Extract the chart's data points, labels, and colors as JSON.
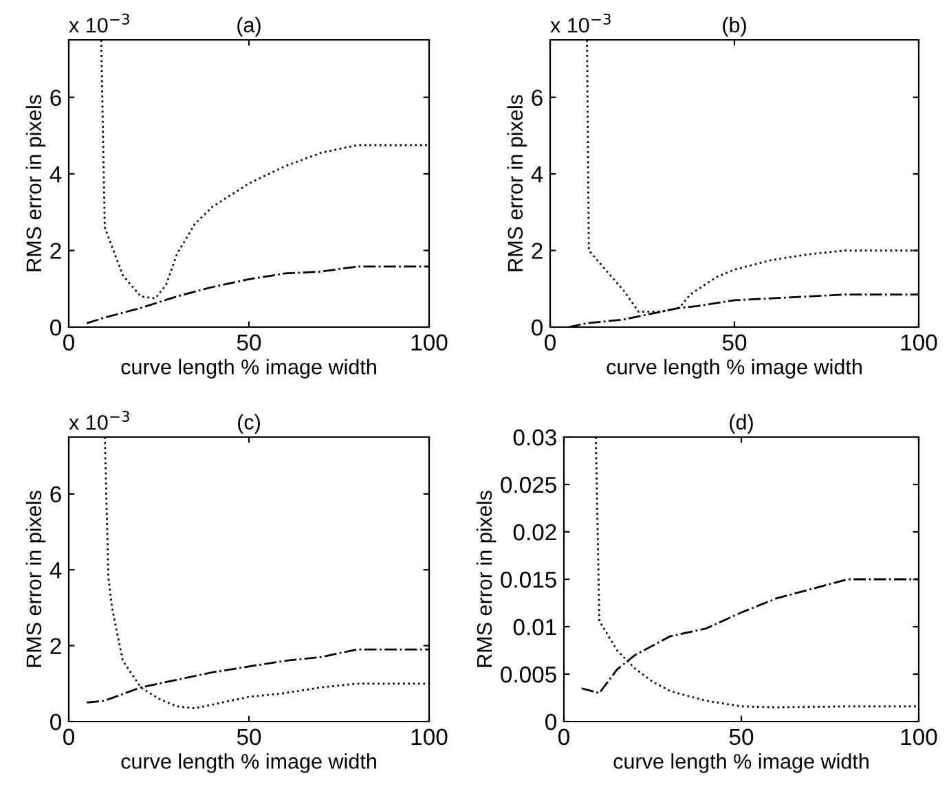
{
  "chart_data": [
    {
      "type": "line",
      "title": "(a)",
      "xlabel": "curve length % image width",
      "ylabel": "RMS error in pixels",
      "annotations": [
        "x 10$^{−3}$"
      ],
      "xlim": [
        0,
        100
      ],
      "xticks": [
        0,
        50,
        100
      ],
      "ylim": [
        0,
        7.5
      ],
      "yticks": [
        0,
        2,
        4,
        6
      ],
      "grid": false,
      "series": [
        {
          "color": "#000000",
          "line_style": "dotted",
          "x": [
            9,
            10,
            15,
            20,
            24,
            27,
            30,
            35,
            40,
            50,
            60,
            70,
            80,
            100
          ],
          "values": [
            7.5,
            2.6,
            1.35,
            0.8,
            0.75,
            1.1,
            1.9,
            2.7,
            3.15,
            3.75,
            4.2,
            4.55,
            4.75,
            4.75
          ]
        },
        {
          "color": "#000000",
          "line_style": "dashdot",
          "x": [
            5,
            10,
            20,
            30,
            40,
            50,
            60,
            70,
            80,
            100
          ],
          "values": [
            0.1,
            0.25,
            0.5,
            0.8,
            1.05,
            1.25,
            1.4,
            1.45,
            1.58,
            1.58
          ]
        }
      ]
    },
    {
      "type": "line",
      "title": "(b)",
      "xlabel": "curve length % image width",
      "ylabel": "RMS error in pixels",
      "annotations": [
        "x 10$^{−3}$"
      ],
      "xlim": [
        0,
        100
      ],
      "xticks": [
        0,
        50,
        100
      ],
      "ylim": [
        0,
        7.5
      ],
      "yticks": [
        0,
        2,
        4,
        6
      ],
      "grid": false,
      "series": [
        {
          "color": "#000000",
          "line_style": "dotted",
          "x": [
            10,
            10.5,
            15,
            20,
            24,
            30,
            35,
            38,
            45,
            50,
            60,
            70,
            80,
            100
          ],
          "values": [
            7.5,
            2.0,
            1.5,
            0.95,
            0.4,
            0.4,
            0.5,
            0.85,
            1.3,
            1.5,
            1.75,
            1.9,
            2.0,
            2.0
          ]
        },
        {
          "color": "#000000",
          "line_style": "dashdot",
          "x": [
            5,
            10,
            20,
            30,
            35,
            40,
            50,
            60,
            70,
            80,
            100
          ],
          "values": [
            0.0,
            0.1,
            0.2,
            0.4,
            0.5,
            0.55,
            0.7,
            0.75,
            0.8,
            0.85,
            0.85
          ]
        }
      ]
    },
    {
      "type": "line",
      "title": "(c)",
      "xlabel": "curve length % image width",
      "ylabel": "RMS error in pixels",
      "annotations": [
        "x 10$^{−3}$"
      ],
      "xlim": [
        0,
        100
      ],
      "xticks": [
        0,
        50,
        100
      ],
      "ylim": [
        0,
        7.5
      ],
      "yticks": [
        0,
        2,
        4,
        6
      ],
      "grid": false,
      "series": [
        {
          "color": "#000000",
          "line_style": "dotted",
          "x": [
            10,
            11,
            12,
            15,
            20,
            25,
            30,
            35,
            40,
            50,
            60,
            70,
            80,
            100
          ],
          "values": [
            7.5,
            3.8,
            3.0,
            1.6,
            0.9,
            0.6,
            0.4,
            0.35,
            0.45,
            0.65,
            0.75,
            0.9,
            1.0,
            1.0
          ]
        },
        {
          "color": "#000000",
          "line_style": "dashdot",
          "x": [
            5,
            10,
            20,
            30,
            40,
            50,
            60,
            70,
            80,
            100
          ],
          "values": [
            0.5,
            0.55,
            0.9,
            1.1,
            1.3,
            1.45,
            1.6,
            1.7,
            1.9,
            1.9
          ]
        }
      ]
    },
    {
      "type": "line",
      "title": "(d)",
      "xlabel": "curve length % image width",
      "ylabel": "RMS error in pixels",
      "xlim": [
        0,
        100
      ],
      "xticks": [
        0,
        50,
        100
      ],
      "ylim": [
        0,
        0.03
      ],
      "yticks": [
        0,
        0.005,
        0.01,
        0.015,
        0.02,
        0.025,
        0.03
      ],
      "grid": false,
      "series": [
        {
          "color": "#000000",
          "line_style": "dotted",
          "x": [
            9,
            10,
            15,
            20,
            25,
            30,
            40,
            50,
            60,
            80,
            100
          ],
          "values": [
            0.03,
            0.0106,
            0.0075,
            0.0056,
            0.0042,
            0.0032,
            0.0022,
            0.0016,
            0.0015,
            0.0016,
            0.0016
          ]
        },
        {
          "color": "#000000",
          "line_style": "dashdot",
          "x": [
            5,
            10,
            15,
            20,
            30,
            40,
            50,
            60,
            70,
            80,
            100
          ],
          "values": [
            0.0035,
            0.003,
            0.0055,
            0.007,
            0.009,
            0.0098,
            0.0115,
            0.013,
            0.014,
            0.015,
            0.015
          ]
        }
      ]
    }
  ]
}
